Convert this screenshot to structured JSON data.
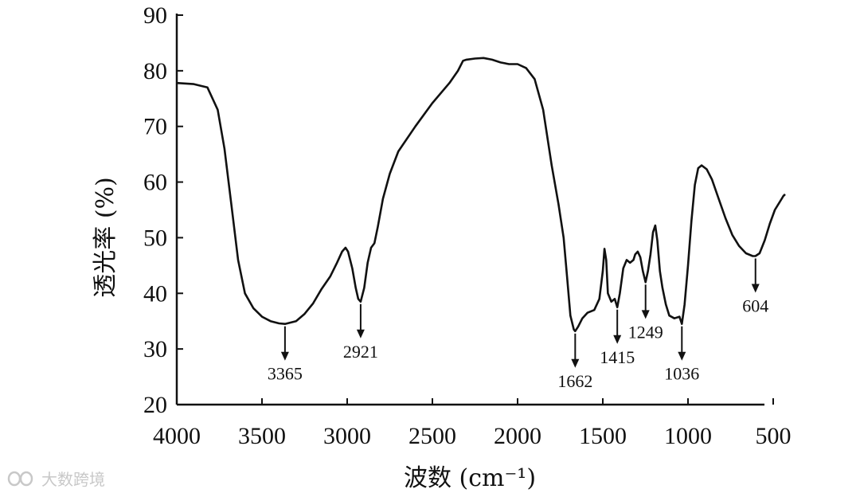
{
  "chart_data": {
    "type": "line",
    "xlabel": "波数 (cm⁻¹)",
    "ylabel": "透光率 (%)",
    "xlim": [
      4000,
      400
    ],
    "ylim": [
      20,
      90
    ],
    "x_ticks": [
      4000,
      3500,
      3000,
      2500,
      2000,
      1500,
      1000,
      500
    ],
    "y_ticks": [
      20,
      30,
      40,
      50,
      60,
      70,
      80,
      90
    ],
    "grid": false,
    "series": [
      {
        "color": "#111111",
        "points": [
          [
            4000,
            77.8
          ],
          [
            3900,
            77.6
          ],
          [
            3820,
            77
          ],
          [
            3760,
            73
          ],
          [
            3720,
            66
          ],
          [
            3680,
            56
          ],
          [
            3640,
            46
          ],
          [
            3600,
            40
          ],
          [
            3550,
            37.3
          ],
          [
            3500,
            35.8
          ],
          [
            3450,
            35
          ],
          [
            3400,
            34.6
          ],
          [
            3365,
            34.5
          ],
          [
            3300,
            35
          ],
          [
            3250,
            36.3
          ],
          [
            3200,
            38.2
          ],
          [
            3150,
            40.8
          ],
          [
            3100,
            43
          ],
          [
            3060,
            45.5
          ],
          [
            3030,
            47.5
          ],
          [
            3010,
            48.2
          ],
          [
            2995,
            47.5
          ],
          [
            2970,
            44.5
          ],
          [
            2950,
            41
          ],
          [
            2935,
            39
          ],
          [
            2921,
            38.5
          ],
          [
            2900,
            41
          ],
          [
            2880,
            45.5
          ],
          [
            2860,
            48.2
          ],
          [
            2840,
            49
          ],
          [
            2820,
            52
          ],
          [
            2790,
            57
          ],
          [
            2750,
            61.5
          ],
          [
            2700,
            65.5
          ],
          [
            2600,
            70
          ],
          [
            2500,
            74.2
          ],
          [
            2400,
            77.8
          ],
          [
            2350,
            80
          ],
          [
            2320,
            81.8
          ],
          [
            2300,
            82
          ],
          [
            2250,
            82.2
          ],
          [
            2200,
            82.3
          ],
          [
            2150,
            82
          ],
          [
            2100,
            81.5
          ],
          [
            2050,
            81.2
          ],
          [
            2000,
            81.2
          ],
          [
            1950,
            80.5
          ],
          [
            1900,
            78.5
          ],
          [
            1850,
            73
          ],
          [
            1800,
            63
          ],
          [
            1760,
            56
          ],
          [
            1730,
            50
          ],
          [
            1710,
            43
          ],
          [
            1690,
            36
          ],
          [
            1670,
            33.5
          ],
          [
            1662,
            33.2
          ],
          [
            1645,
            34
          ],
          [
            1620,
            35.5
          ],
          [
            1590,
            36.5
          ],
          [
            1550,
            37
          ],
          [
            1520,
            39
          ],
          [
            1500,
            44
          ],
          [
            1490,
            48
          ],
          [
            1480,
            46
          ],
          [
            1470,
            40
          ],
          [
            1450,
            38.5
          ],
          [
            1430,
            39
          ],
          [
            1415,
            37.5
          ],
          [
            1400,
            40
          ],
          [
            1380,
            44.5
          ],
          [
            1360,
            46
          ],
          [
            1340,
            45.5
          ],
          [
            1320,
            46
          ],
          [
            1310,
            47
          ],
          [
            1295,
            47.5
          ],
          [
            1280,
            46.5
          ],
          [
            1265,
            44
          ],
          [
            1249,
            42
          ],
          [
            1235,
            44
          ],
          [
            1220,
            47
          ],
          [
            1205,
            51
          ],
          [
            1192,
            52.2
          ],
          [
            1180,
            49.5
          ],
          [
            1165,
            44
          ],
          [
            1150,
            41
          ],
          [
            1130,
            38
          ],
          [
            1110,
            36
          ],
          [
            1080,
            35.5
          ],
          [
            1050,
            35.8
          ],
          [
            1036,
            34.5
          ],
          [
            1020,
            38
          ],
          [
            1000,
            45
          ],
          [
            980,
            53
          ],
          [
            960,
            59.5
          ],
          [
            940,
            62.5
          ],
          [
            920,
            63
          ],
          [
            890,
            62.3
          ],
          [
            860,
            60.5
          ],
          [
            820,
            57
          ],
          [
            780,
            53.5
          ],
          [
            740,
            50.5
          ],
          [
            700,
            48.5
          ],
          [
            660,
            47.2
          ],
          [
            620,
            46.7
          ],
          [
            604,
            46.7
          ],
          [
            580,
            47.2
          ],
          [
            550,
            49.5
          ],
          [
            520,
            52.5
          ],
          [
            490,
            55
          ],
          [
            450,
            57
          ],
          [
            440,
            57.5
          ],
          [
            430,
            57.8
          ]
        ]
      }
    ],
    "annotations": [
      {
        "label": "3365",
        "x": 3365,
        "y": 34.5
      },
      {
        "label": "2921",
        "x": 2921,
        "y": 38.5
      },
      {
        "label": "1662",
        "x": 1662,
        "y": 33.2
      },
      {
        "label": "1415",
        "x": 1415,
        "y": 37.5
      },
      {
        "label": "1249",
        "x": 1249,
        "y": 42
      },
      {
        "label": "1036",
        "x": 1036,
        "y": 34.5
      },
      {
        "label": "604",
        "x": 604,
        "y": 46.7
      }
    ]
  },
  "watermark": {
    "text": "大数跨境",
    "logo": "infinity-watermark-icon"
  }
}
